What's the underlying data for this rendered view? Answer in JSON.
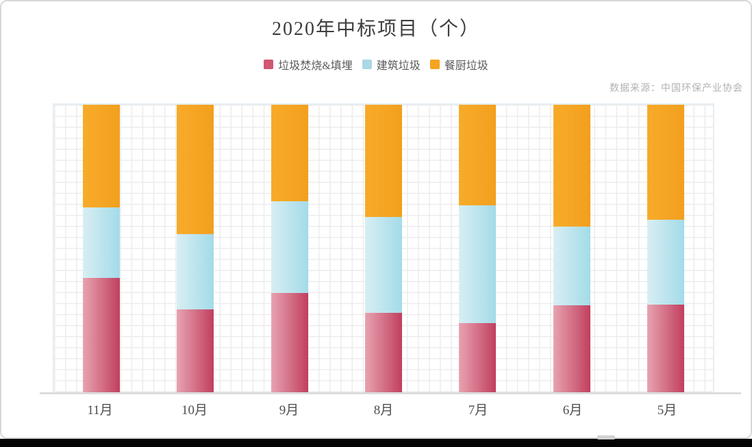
{
  "page": {
    "title": "2020年中标项目（个）",
    "source_note": "数据来源：中国环保产业协会"
  },
  "legend": {
    "items": [
      {
        "label": "垃圾焚烧&填埋",
        "color": "#cf5872"
      },
      {
        "label": "建筑垃圾",
        "color": "#aad8e6"
      },
      {
        "label": "餐厨垃圾",
        "color": "#f5a41f"
      }
    ]
  },
  "chart_data": {
    "type": "bar",
    "stacked": true,
    "stack_mode": "percent",
    "title": "2020年中标项目（个）",
    "categories": [
      "11月",
      "10月",
      "9月",
      "8月",
      "7月",
      "6月",
      "5月"
    ],
    "series": [
      {
        "name": "垃圾焚烧&填埋",
        "values": [
          39.8,
          29.1,
          34.8,
          27.7,
          24.2,
          30.3,
          30.6
        ],
        "color_from": "#e7a3b1",
        "color_to": "#c13f5f",
        "legend_color": "#cf5872"
      },
      {
        "name": "建筑垃圾",
        "values": [
          24.6,
          26.1,
          31.8,
          33.4,
          41.0,
          27.5,
          29.4
        ],
        "color_from": "#d8eef3",
        "color_to": "#a3dbe8",
        "legend_color": "#aad8e6"
      },
      {
        "name": "餐厨垃圾",
        "values": [
          35.5,
          44.8,
          33.4,
          38.9,
          34.8,
          42.2,
          40.0
        ],
        "color_from": "#f7ab2a",
        "color_to": "#f2a01e",
        "legend_color": "#f5a41f"
      }
    ],
    "xlabel": "",
    "ylabel": "",
    "y_axis_labels_visible": false,
    "ylim_percent": [
      0,
      100
    ],
    "grid": "graph-paper",
    "legend_position": "top-center",
    "note": "All columns span full plot height; segment heights are share of monthly total"
  },
  "colors": {
    "grid_line": "#ececec",
    "plot_border": "#e5eef5",
    "axis_line": "#dcdcdc",
    "card_border": "#d8d8d8",
    "bottom_strip": "#040404",
    "title_text": "#3d3d3d",
    "xlabel_text": "#4e4e4e",
    "legend_text": "#595959",
    "source_text": "#b1b1b1"
  }
}
